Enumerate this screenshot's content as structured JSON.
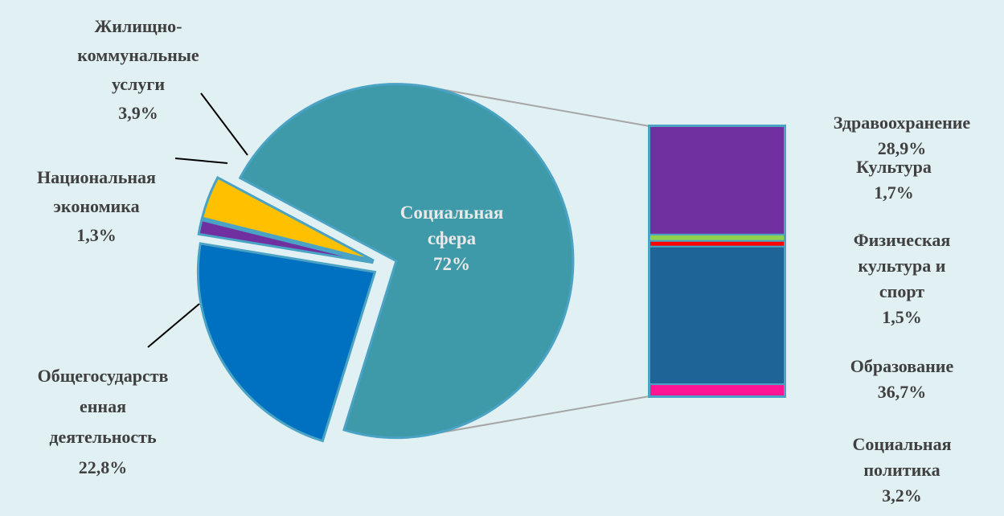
{
  "chart_data": [
    {
      "type": "pie",
      "categories": [
        "Социальная сфера",
        "Общегосударственная деятельность",
        "Национальная экономика",
        "Жилищно-коммунальные услуги"
      ],
      "values": [
        72,
        22.8,
        1.3,
        3.9
      ],
      "value_labels": [
        "72%",
        "22,8%",
        "1,3%",
        "3,9%"
      ],
      "label_lines": [
        [
          "Социальная",
          "сфера",
          "72%"
        ],
        [
          "Общегосударств",
          "енная",
          "деятельность",
          "22,8%"
        ],
        [
          "Национальная",
          "экономика",
          "1,3%"
        ],
        [
          "Жилищно-",
          "коммунальные",
          "услуги",
          "3,9%"
        ]
      ],
      "colors": [
        "#3e9aa8",
        "#0070c0",
        "#7030a0",
        "#ffc000"
      ],
      "exploded": true
    },
    {
      "type": "bar",
      "stacked": true,
      "breakdown_of": "Социальная сфера",
      "categories": [
        "Здравоохранение",
        "Культура",
        "Физическая культура и спорт",
        "Образование",
        "Социальная политика"
      ],
      "values": [
        28.9,
        1.7,
        1.5,
        36.7,
        3.2
      ],
      "value_labels": [
        "28,9%",
        "1,7%",
        "1,5%",
        "36,7%",
        "3,2%"
      ],
      "label_lines": [
        [
          "Здравоохранение",
          "28,9%"
        ],
        [
          "Культура",
          "1,7%"
        ],
        [
          "Физическая",
          "культура и",
          "спорт",
          "1,5%"
        ],
        [
          "Образование",
          "36,7%"
        ],
        [
          "Социальная",
          "политика",
          "3,2%"
        ]
      ],
      "colors": [
        "#7030a0",
        "#92d050",
        "#ff0000",
        "#1f6496",
        "#ff1493"
      ]
    }
  ],
  "colors": {
    "background": "#e0f0f3",
    "segment_border": "#4aa3c4",
    "connector": "#a6a6a6",
    "label_text": "#404040",
    "inner_label_text": "#e9e9e9"
  }
}
